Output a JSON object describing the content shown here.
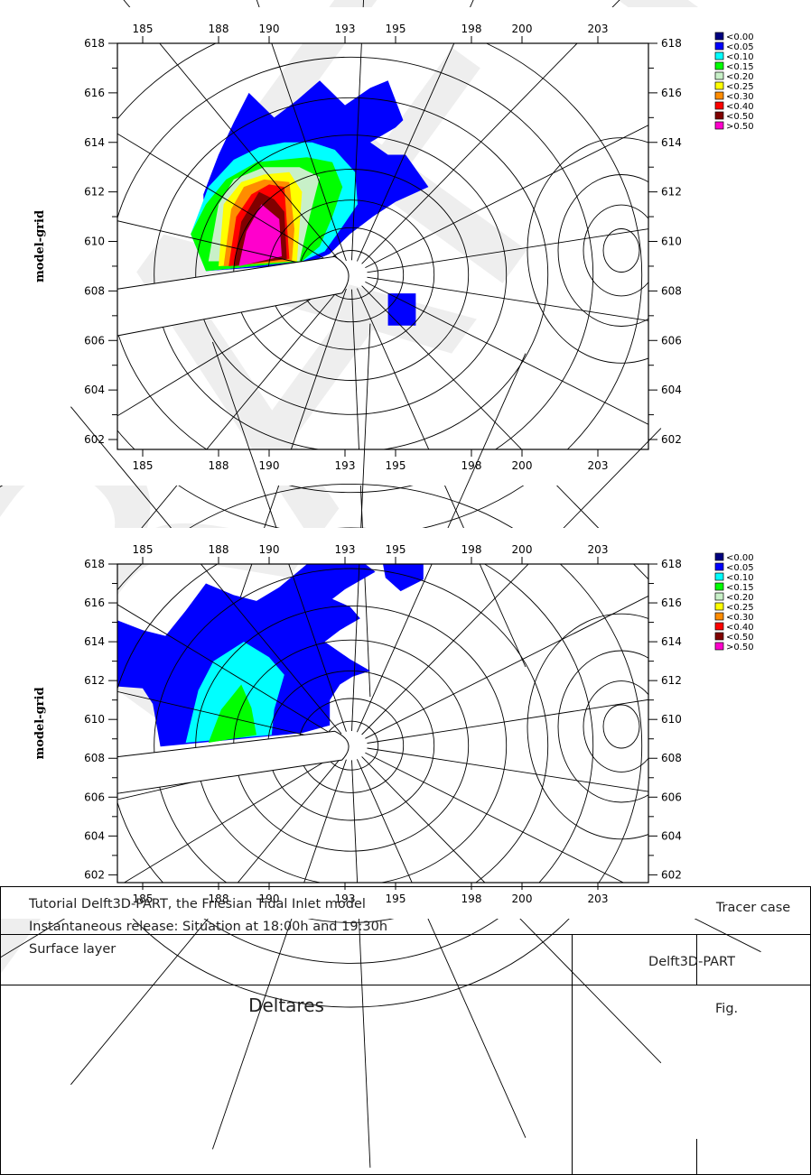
{
  "watermark": "DRAFT",
  "chart_data": [
    {
      "type": "heatmap",
      "title": "",
      "ylabel": "model-grid",
      "xlabel": "",
      "xlim": [
        184,
        205
      ],
      "ylim": [
        601.6,
        618
      ],
      "x_ticks": [
        "185",
        "188",
        "190",
        "193",
        "195",
        "198",
        "200",
        "203"
      ],
      "y_ticks": [
        "602",
        "604",
        "606",
        "608",
        "610",
        "612",
        "614",
        "616",
        "618"
      ],
      "legend": [
        "<0.00",
        "<0.05",
        "<0.10",
        "<0.15",
        "<0.20",
        "<0.25",
        "<0.30",
        "<0.40",
        "<0.50",
        ">0.50"
      ],
      "legend_colors": [
        "#000080",
        "#0000ff",
        "#00ffff",
        "#00ff00",
        "#c8f0c8",
        "#ffff00",
        "#ff8c00",
        "#ff0000",
        "#800000",
        "#ff00cc"
      ],
      "legend_placement": "right-top",
      "contour_bands": [
        {
          "class": "<0.05",
          "points": [
            [
              187.4,
              611.9
            ],
            [
              188.0,
              613.5
            ],
            [
              188.6,
              614.8
            ],
            [
              189.2,
              616.0
            ],
            [
              190.2,
              615.0
            ],
            [
              191.1,
              615.7
            ],
            [
              192.0,
              616.5
            ],
            [
              193.0,
              615.5
            ],
            [
              194.0,
              616.2
            ],
            [
              194.7,
              616.5
            ],
            [
              195.3,
              614.9
            ],
            [
              195.0,
              614.6
            ],
            [
              194.0,
              614.0
            ],
            [
              194.7,
              613.5
            ],
            [
              195.4,
              613.5
            ],
            [
              196.3,
              612.2
            ],
            [
              195.0,
              611.6
            ],
            [
              194.1,
              611.0
            ],
            [
              193.2,
              610.3
            ],
            [
              192.4,
              609.5
            ],
            [
              191.5,
              609.1
            ],
            [
              187.5,
              608.8
            ]
          ]
        },
        {
          "class": "<0.05",
          "points": [
            [
              194.7,
              607.9
            ],
            [
              195.8,
              607.9
            ],
            [
              195.8,
              606.6
            ],
            [
              194.7,
              606.6
            ]
          ]
        },
        {
          "class": "<0.10",
          "points": [
            [
              186.9,
              610.3
            ],
            [
              187.6,
              612.2
            ],
            [
              188.6,
              613.3
            ],
            [
              189.6,
              613.8
            ],
            [
              190.6,
              614.0
            ],
            [
              191.7,
              614.0
            ],
            [
              192.6,
              613.7
            ],
            [
              193.4,
              612.8
            ],
            [
              193.5,
              611.5
            ],
            [
              192.9,
              610.6
            ],
            [
              192.2,
              609.6
            ],
            [
              191.3,
              609.2
            ],
            [
              187.5,
              608.8
            ]
          ]
        },
        {
          "class": "<0.15",
          "points": [
            [
              186.9,
              610.3
            ],
            [
              187.5,
              611.5
            ],
            [
              188.3,
              612.5
            ],
            [
              189.5,
              613.2
            ],
            [
              191.5,
              613.4
            ],
            [
              192.5,
              613.2
            ],
            [
              192.9,
              612.2
            ],
            [
              192.5,
              611.0
            ],
            [
              192.0,
              609.8
            ],
            [
              191.3,
              609.2
            ],
            [
              187.5,
              608.8
            ]
          ]
        },
        {
          "class": "<0.20",
          "points": [
            [
              187.6,
              609.2
            ],
            [
              188.0,
              611.5
            ],
            [
              188.6,
              612.5
            ],
            [
              189.8,
              613.0
            ],
            [
              191.2,
              613.0
            ],
            [
              192.0,
              612.6
            ],
            [
              191.6,
              611.0
            ],
            [
              191.2,
              609.2
            ]
          ]
        },
        {
          "class": "<0.25",
          "points": [
            [
              188.0,
              609.0
            ],
            [
              188.2,
              611.5
            ],
            [
              188.9,
              612.4
            ],
            [
              189.8,
              612.7
            ],
            [
              190.8,
              612.8
            ],
            [
              191.3,
              612.0
            ],
            [
              191.1,
              609.2
            ]
          ]
        },
        {
          "class": "<0.30",
          "points": [
            [
              188.2,
              609.0
            ],
            [
              188.5,
              611.3
            ],
            [
              189.0,
              612.2
            ],
            [
              189.8,
              612.5
            ],
            [
              190.8,
              612.4
            ],
            [
              191.0,
              610.5
            ],
            [
              190.9,
              609.2
            ]
          ]
        },
        {
          "class": "<0.40",
          "points": [
            [
              188.4,
              609.0
            ],
            [
              188.7,
              611.0
            ],
            [
              189.3,
              611.9
            ],
            [
              190.0,
              612.3
            ],
            [
              190.6,
              612.2
            ],
            [
              190.8,
              609.3
            ]
          ]
        },
        {
          "class": "<0.50",
          "points": [
            [
              188.6,
              609.0
            ],
            [
              188.9,
              610.8
            ],
            [
              189.6,
              612.0
            ],
            [
              190.2,
              611.7
            ],
            [
              190.6,
              611.2
            ],
            [
              190.7,
              609.3
            ]
          ]
        },
        {
          "class": ">0.50",
          "points": [
            [
              188.8,
              609.0
            ],
            [
              189.1,
              610.4
            ],
            [
              189.7,
              611.5
            ],
            [
              190.4,
              610.9
            ],
            [
              190.5,
              609.4
            ]
          ]
        }
      ]
    },
    {
      "type": "heatmap",
      "title": "",
      "ylabel": "model-grid",
      "xlabel": "",
      "xlim": [
        184,
        205
      ],
      "ylim": [
        601.6,
        618
      ],
      "x_ticks": [
        "185",
        "188",
        "190",
        "193",
        "195",
        "198",
        "200",
        "203"
      ],
      "y_ticks": [
        "602",
        "604",
        "606",
        "608",
        "610",
        "612",
        "614",
        "616",
        "618"
      ],
      "legend": [
        "<0.00",
        "<0.05",
        "<0.10",
        "<0.15",
        "<0.20",
        "<0.25",
        "<0.30",
        "<0.40",
        "<0.50",
        ">0.50"
      ],
      "legend_colors": [
        "#000080",
        "#0000ff",
        "#00ffff",
        "#00ff00",
        "#c8f0c8",
        "#ffff00",
        "#ff8c00",
        "#ff0000",
        "#800000",
        "#ff00cc"
      ],
      "legend_placement": "right-top",
      "contour_bands": [
        {
          "class": "<0.05",
          "points": [
            [
              184.0,
              615.1
            ],
            [
              185.0,
              614.6
            ],
            [
              185.9,
              614.3
            ],
            [
              186.7,
              615.6
            ],
            [
              187.5,
              617.0
            ],
            [
              188.6,
              616.4
            ],
            [
              189.5,
              616.1
            ],
            [
              190.4,
              616.8
            ],
            [
              191.5,
              618.0
            ],
            [
              193.8,
              618.0
            ],
            [
              194.2,
              617.6
            ],
            [
              193.0,
              616.7
            ],
            [
              192.5,
              616.2
            ],
            [
              193.2,
              615.8
            ],
            [
              193.6,
              615.2
            ],
            [
              192.8,
              614.6
            ],
            [
              192.2,
              614.0
            ],
            [
              193.2,
              613.1
            ],
            [
              194.0,
              612.5
            ],
            [
              193.3,
              612.2
            ],
            [
              192.8,
              611.8
            ],
            [
              192.4,
              611.0
            ],
            [
              192.4,
              609.7
            ],
            [
              191.3,
              609.3
            ],
            [
              185.7,
              608.6
            ],
            [
              185.4,
              610.8
            ],
            [
              185.0,
              611.6
            ],
            [
              184.0,
              611.7
            ]
          ]
        },
        {
          "class": "<0.05",
          "points": [
            [
              194.5,
              618.0
            ],
            [
              196.1,
              618.0
            ],
            [
              196.1,
              617.2
            ],
            [
              195.2,
              616.6
            ],
            [
              194.6,
              617.3
            ]
          ]
        },
        {
          "class": "<0.10",
          "points": [
            [
              186.7,
              608.8
            ],
            [
              187.2,
              611.5
            ],
            [
              187.8,
              613.0
            ],
            [
              189.0,
              614.0
            ],
            [
              190.0,
              613.2
            ],
            [
              190.6,
              612.3
            ],
            [
              190.2,
              610.5
            ],
            [
              190.1,
              609.2
            ]
          ]
        },
        {
          "class": "<0.15",
          "points": [
            [
              187.6,
              608.8
            ],
            [
              188.1,
              610.5
            ],
            [
              188.9,
              611.8
            ],
            [
              189.3,
              610.6
            ],
            [
              189.5,
              609.2
            ]
          ]
        }
      ]
    }
  ],
  "title_block": {
    "line1": "Tutorial Delft3D-PART, the Friesian Tidal Inlet model",
    "line2": "Instantaneous release: Situation at 18:00h and 19:30h",
    "line3": "Surface layer",
    "organization": "Deltares",
    "case": "Tracer case",
    "product": "Delft3D-PART",
    "fig_label": "Fig."
  }
}
